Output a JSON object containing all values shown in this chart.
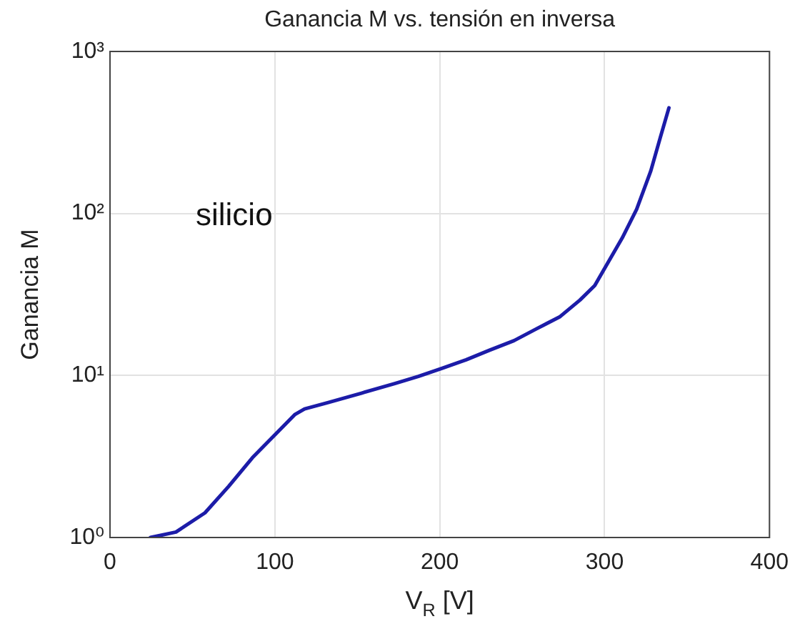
{
  "chart_data": {
    "type": "line",
    "title": "Ganancia M vs. tensión en inversa",
    "xlabel": "V$_{R}$ [V]",
    "ylabel": "Ganancia M",
    "annotations": [
      "silicio"
    ],
    "series": [
      {
        "color": "#1c1ca8",
        "x": [
          24.5,
          40,
          57.6,
          72,
          86.4,
          100.7,
          112,
          118,
          132,
          152.5,
          172.7,
          187,
          201.6,
          216,
          230,
          245,
          259,
          273,
          285,
          294,
          299,
          310.7,
          319.4,
          328,
          333.8,
          339
        ],
        "values": [
          1.0,
          1.08,
          1.42,
          2.07,
          3.11,
          4.37,
          5.73,
          6.22,
          6.79,
          7.78,
          8.91,
          9.86,
          11.1,
          12.5,
          14.3,
          16.4,
          19.5,
          23.1,
          29.2,
          35.9,
          44,
          70.7,
          106,
          183,
          295,
          449
        ]
      }
    ],
    "xlim": [
      0,
      400
    ],
    "xticks": [
      0,
      100,
      200,
      300,
      400
    ],
    "ylim": [
      1,
      1000
    ],
    "yticks": [
      {
        "value": 1,
        "label": "10⁰"
      },
      {
        "value": 10,
        "label": "10¹"
      },
      {
        "value": 100,
        "label": "10²"
      },
      {
        "value": 1000,
        "label": "10³"
      }
    ],
    "log": "y",
    "grid": true,
    "legend": false,
    "marker": "none",
    "line_style": "solid"
  }
}
